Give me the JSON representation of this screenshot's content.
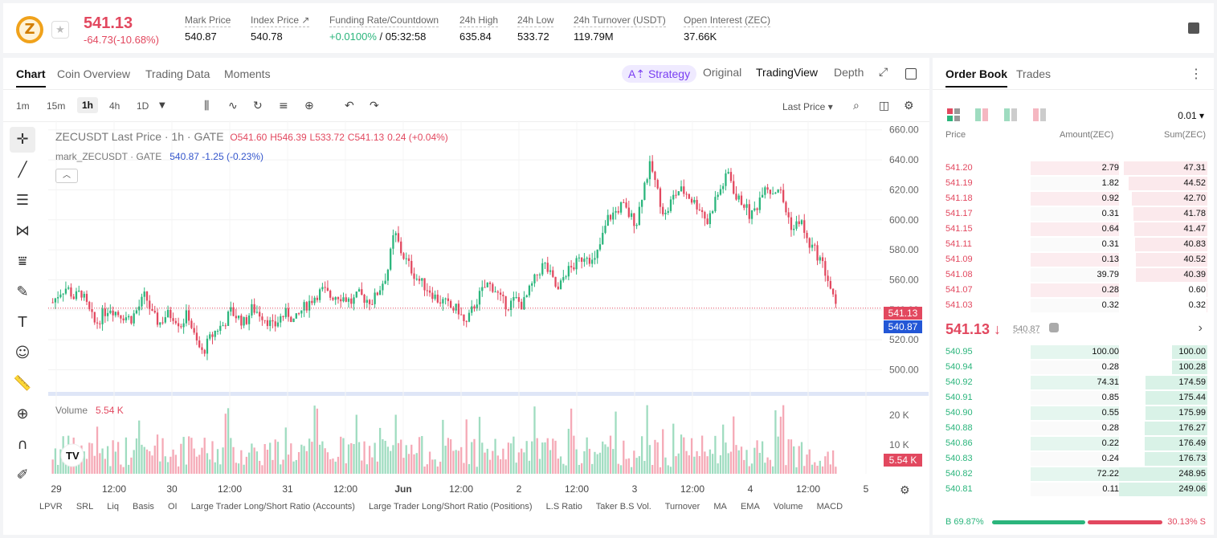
{
  "header": {
    "last_price": "541.13",
    "change": "-64.73(-10.68%)",
    "stats": [
      {
        "label": "Mark Price",
        "value": "540.87"
      },
      {
        "label": "Index Price ↗",
        "value": "540.78"
      },
      {
        "label": "Funding Rate/Countdown",
        "value": "+0.0100%",
        "value2": " / 05:32:58"
      },
      {
        "label": "24h High",
        "value": "635.84"
      },
      {
        "label": "24h Low",
        "value": "533.72"
      },
      {
        "label": "24h Turnover (USDT)",
        "value": "119.79M"
      },
      {
        "label": "Open Interest (ZEC)",
        "value": "37.66K"
      }
    ]
  },
  "chart_tabs": [
    "Chart",
    "Coin Overview",
    "Trading Data",
    "Moments"
  ],
  "chart_views": {
    "strategy": "A⇡ Strategy",
    "original": "Original",
    "tradingview": "TradingView",
    "depth": "Depth"
  },
  "timeframes": [
    "1m",
    "15m",
    "1h",
    "4h",
    "1D"
  ],
  "last_price_select": "Last Price",
  "legend": {
    "symbol": "ZECUSDT Last Price · 1h · GATE",
    "o": "O541.60",
    "h": "H546.39",
    "l": "L533.72",
    "c": "C541.13",
    "chg": "0.24 (+0.04%)",
    "mark_label": "mark_ZECUSDT · GATE",
    "mark_value": "540.87  -1.25 (-0.23%)"
  },
  "volume_label": "Volume",
  "volume_value": "5.54 K",
  "price_tags": {
    "last": "541.13",
    "mark": "540.87",
    "volume": "5.54 K"
  },
  "indicators": [
    "LPVR",
    "SRL",
    "Liq",
    "Basis",
    "OI",
    "Large Trader Long/Short Ratio (Accounts)",
    "Large Trader Long/Short Ratio (Positions)",
    "L.S Ratio",
    "Taker B.S Vol.",
    "Turnover",
    "MA",
    "EMA",
    "Volume",
    "MACD"
  ],
  "colors": {
    "up": "#2bb57c",
    "down": "#e2485f",
    "mark": "#2357d6"
  },
  "chart_data": {
    "type": "candlestick",
    "y_ticks": [
      "660.00",
      "640.00",
      "620.00",
      "600.00",
      "580.00",
      "560.00",
      "540.00",
      "520.00",
      "500.00"
    ],
    "ylim": [
      496,
      662
    ],
    "volume_ticks": [
      "20 K",
      "10 K"
    ],
    "x_ticks": [
      "29",
      "12:00",
      "30",
      "12:00",
      "31",
      "12:00",
      "Jun",
      "12:00",
      "2",
      "12:00",
      "3",
      "12:00",
      "4",
      "12:00",
      "5"
    ],
    "close_path": [
      545,
      552,
      555,
      548,
      552,
      540,
      530,
      537,
      542,
      538,
      536,
      534,
      541,
      550,
      536,
      531,
      537,
      536,
      530,
      538,
      520,
      511,
      520,
      527,
      530,
      539,
      535,
      531,
      541,
      538,
      534,
      528,
      535,
      538,
      532,
      540,
      545,
      550,
      553,
      549,
      550,
      548,
      545,
      550,
      547,
      546,
      555,
      565,
      592,
      578,
      570,
      562,
      557,
      553,
      547,
      545,
      541,
      540,
      529,
      541,
      550,
      557,
      555,
      546,
      543,
      547,
      543,
      553,
      563,
      571,
      562,
      552,
      565,
      568,
      573,
      578,
      570,
      585,
      601,
      605,
      610,
      603,
      598,
      622,
      637,
      618,
      602,
      614,
      620,
      618,
      612,
      608,
      598,
      613,
      622,
      632,
      614,
      612,
      602,
      610,
      625,
      618,
      622,
      606,
      593,
      601,
      585,
      580,
      572,
      559,
      541
    ]
  },
  "order_book": {
    "tabs": [
      "Order Book",
      "Trades"
    ],
    "precision": "0.01",
    "headers": [
      "Price",
      "Amount(ZEC)",
      "Sum(ZEC)"
    ],
    "asks": [
      {
        "p": "541.20",
        "a": "2.79",
        "s": "47.31"
      },
      {
        "p": "541.19",
        "a": "1.82",
        "s": "44.52"
      },
      {
        "p": "541.18",
        "a": "0.92",
        "s": "42.70"
      },
      {
        "p": "541.17",
        "a": "0.31",
        "s": "41.78"
      },
      {
        "p": "541.15",
        "a": "0.64",
        "s": "41.47"
      },
      {
        "p": "541.11",
        "a": "0.31",
        "s": "40.83"
      },
      {
        "p": "541.09",
        "a": "0.13",
        "s": "40.52"
      },
      {
        "p": "541.08",
        "a": "39.79",
        "s": "40.39"
      },
      {
        "p": "541.07",
        "a": "0.28",
        "s": "0.60"
      },
      {
        "p": "541.03",
        "a": "0.32",
        "s": "0.32"
      }
    ],
    "mid_price": "541.13 ↓",
    "mid_mark": "540.87",
    "bids": [
      {
        "p": "540.95",
        "a": "100.00",
        "s": "100.00"
      },
      {
        "p": "540.94",
        "a": "0.28",
        "s": "100.28"
      },
      {
        "p": "540.92",
        "a": "74.31",
        "s": "174.59"
      },
      {
        "p": "540.91",
        "a": "0.85",
        "s": "175.44"
      },
      {
        "p": "540.90",
        "a": "0.55",
        "s": "175.99"
      },
      {
        "p": "540.88",
        "a": "0.28",
        "s": "176.27"
      },
      {
        "p": "540.86",
        "a": "0.22",
        "s": "176.49"
      },
      {
        "p": "540.83",
        "a": "0.24",
        "s": "176.73"
      },
      {
        "p": "540.82",
        "a": "72.22",
        "s": "248.95"
      },
      {
        "p": "540.81",
        "a": "0.11",
        "s": "249.06"
      }
    ],
    "buy_ratio": "B 69.87%",
    "sell_ratio": "30.13% S"
  }
}
